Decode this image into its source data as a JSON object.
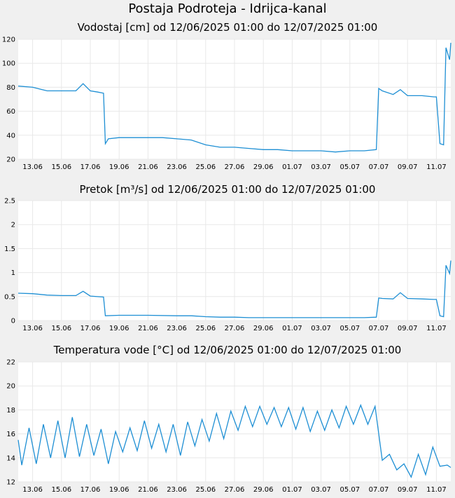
{
  "page_title": "Postaja Podroteja - Idrijca-kanal",
  "colors": {
    "series": "#1e8fd4",
    "background": "#f0f0f0",
    "plot": "#ffffff",
    "grid": "#e8e8e8"
  },
  "chart_data": [
    {
      "type": "line",
      "title": "Vodostaj [cm] od 12/06/2025 01:00 do 12/07/2025 01:00",
      "xlabel": "",
      "ylabel": "",
      "xlim": [
        "2025-06-12",
        "2025-07-12"
      ],
      "ylim": [
        20,
        120
      ],
      "yticks": [
        "20",
        "40",
        "60",
        "80",
        "100",
        "120"
      ],
      "xticks": [
        "13.06",
        "15.06",
        "17.06",
        "19.06",
        "21.06",
        "23.06",
        "25.06",
        "27.06",
        "29.06",
        "01.07",
        "03.07",
        "05.07",
        "07.07",
        "09.07",
        "11.07"
      ],
      "grid": true,
      "legend": "none",
      "x": [
        "2025-06-12",
        "2025-06-13",
        "2025-06-14",
        "2025-06-15",
        "2025-06-16",
        "2025-06-16 12:00",
        "2025-06-17",
        "2025-06-17 12:00",
        "2025-06-17 22:00",
        "2025-06-18 01:00",
        "2025-06-18 06:00",
        "2025-06-19",
        "2025-06-20",
        "2025-06-21",
        "2025-06-22",
        "2025-06-23",
        "2025-06-24",
        "2025-06-25",
        "2025-06-26",
        "2025-06-26 12:00",
        "2025-06-27",
        "2025-06-28",
        "2025-06-29",
        "2025-06-30",
        "2025-07-01",
        "2025-07-02",
        "2025-07-03",
        "2025-07-04",
        "2025-07-05",
        "2025-07-06",
        "2025-07-06 20:00",
        "2025-07-07",
        "2025-07-07 06:00",
        "2025-07-08",
        "2025-07-08 12:00",
        "2025-07-09",
        "2025-07-10",
        "2025-07-10 20:00",
        "2025-07-11",
        "2025-07-11 06:00",
        "2025-07-11 12:00",
        "2025-07-11 16:00",
        "2025-07-11 22:00",
        "2025-07-12"
      ],
      "values": [
        81,
        80,
        77,
        77,
        77,
        83,
        77,
        76,
        75,
        33,
        37,
        38,
        38,
        38,
        38,
        37,
        36,
        32,
        30,
        30,
        30,
        29,
        28,
        28,
        27,
        27,
        27,
        26,
        27,
        27,
        28,
        79,
        77,
        74,
        78,
        73,
        73,
        72,
        72,
        33,
        32,
        113,
        103,
        117
      ]
    },
    {
      "type": "line",
      "title": "Pretok [m³/s] od 12/06/2025 01:00 do 12/07/2025 01:00",
      "xlabel": "",
      "ylabel": "",
      "xlim": [
        "2025-06-12",
        "2025-07-12"
      ],
      "ylim": [
        0,
        2.5
      ],
      "yticks": [
        "0",
        "0.5",
        "1",
        "1.5",
        "2",
        "2.5"
      ],
      "xticks": [
        "13.06",
        "15.06",
        "17.06",
        "19.06",
        "21.06",
        "23.06",
        "25.06",
        "27.06",
        "29.06",
        "01.07",
        "03.07",
        "05.07",
        "07.07",
        "09.07",
        "11.07"
      ],
      "grid": true,
      "legend": "none",
      "x": [
        "2025-06-12",
        "2025-06-13",
        "2025-06-14",
        "2025-06-15",
        "2025-06-16",
        "2025-06-16 12:00",
        "2025-06-17",
        "2025-06-17 22:00",
        "2025-06-18 01:00",
        "2025-06-19",
        "2025-06-21",
        "2025-06-23",
        "2025-06-24",
        "2025-06-25",
        "2025-06-26",
        "2025-06-27",
        "2025-06-28",
        "2025-06-30",
        "2025-07-02",
        "2025-07-04",
        "2025-07-06",
        "2025-07-06 20:00",
        "2025-07-07",
        "2025-07-07 06:00",
        "2025-07-08",
        "2025-07-08 12:00",
        "2025-07-09",
        "2025-07-10",
        "2025-07-10 20:00",
        "2025-07-11",
        "2025-07-11 06:00",
        "2025-07-11 12:00",
        "2025-07-11 16:00",
        "2025-07-11 22:00",
        "2025-07-12"
      ],
      "values": [
        0.57,
        0.56,
        0.53,
        0.52,
        0.52,
        0.61,
        0.51,
        0.49,
        0.1,
        0.11,
        0.11,
        0.1,
        0.1,
        0.08,
        0.07,
        0.07,
        0.06,
        0.06,
        0.06,
        0.06,
        0.06,
        0.07,
        0.47,
        0.46,
        0.45,
        0.58,
        0.46,
        0.45,
        0.44,
        0.44,
        0.1,
        0.08,
        1.15,
        0.98,
        1.25
      ]
    },
    {
      "type": "line",
      "title": "Temperatura vode [°C] od 12/06/2025 01:00 do 12/07/2025 01:00",
      "xlabel": "",
      "ylabel": "",
      "xlim": [
        "2025-06-12",
        "2025-07-12"
      ],
      "ylim": [
        12,
        22
      ],
      "yticks": [
        "12",
        "14",
        "16",
        "18",
        "20",
        "22"
      ],
      "xticks": [
        "13.06",
        "15.06",
        "17.06",
        "19.06",
        "21.06",
        "23.06",
        "25.06",
        "27.06",
        "29.06",
        "01.07",
        "03.07",
        "05.07",
        "07.07",
        "09.07",
        "11.07"
      ],
      "grid": true,
      "legend": "none",
      "x": [
        "2025-06-12",
        "2025-06-12 06:00",
        "2025-06-12 18:00",
        "2025-06-13 06:00",
        "2025-06-13 18:00",
        "2025-06-14 06:00",
        "2025-06-14 18:00",
        "2025-06-15 06:00",
        "2025-06-15 18:00",
        "2025-06-16 06:00",
        "2025-06-16 18:00",
        "2025-06-17 06:00",
        "2025-06-17 18:00",
        "2025-06-18 06:00",
        "2025-06-18 18:00",
        "2025-06-19 06:00",
        "2025-06-19 18:00",
        "2025-06-20 06:00",
        "2025-06-20 18:00",
        "2025-06-21 06:00",
        "2025-06-21 18:00",
        "2025-06-22 06:00",
        "2025-06-22 18:00",
        "2025-06-23 06:00",
        "2025-06-23 18:00",
        "2025-06-24 06:00",
        "2025-06-24 18:00",
        "2025-06-25 06:00",
        "2025-06-25 18:00",
        "2025-06-26 06:00",
        "2025-06-26 18:00",
        "2025-06-27 06:00",
        "2025-06-27 18:00",
        "2025-06-28 06:00",
        "2025-06-28 18:00",
        "2025-06-29 06:00",
        "2025-06-29 18:00",
        "2025-06-30 06:00",
        "2025-06-30 18:00",
        "2025-07-01 06:00",
        "2025-07-01 18:00",
        "2025-07-02 06:00",
        "2025-07-02 18:00",
        "2025-07-03 06:00",
        "2025-07-03 18:00",
        "2025-07-04 06:00",
        "2025-07-04 18:00",
        "2025-07-05 06:00",
        "2025-07-05 18:00",
        "2025-07-06 06:00",
        "2025-07-06 18:00",
        "2025-07-07 06:00",
        "2025-07-07 18:00",
        "2025-07-08 06:00",
        "2025-07-08 18:00",
        "2025-07-09 06:00",
        "2025-07-09 18:00",
        "2025-07-10 06:00",
        "2025-07-10 18:00",
        "2025-07-11 06:00",
        "2025-07-11 18:00",
        "2025-07-12"
      ],
      "values": [
        15.5,
        13.4,
        16.5,
        13.5,
        16.8,
        14.0,
        17.1,
        14.0,
        17.4,
        14.1,
        16.8,
        14.2,
        16.4,
        13.5,
        16.2,
        14.5,
        16.5,
        14.6,
        17.1,
        14.8,
        16.8,
        14.5,
        16.8,
        14.2,
        17.0,
        15.0,
        17.2,
        15.4,
        17.7,
        15.6,
        17.9,
        16.3,
        18.3,
        16.6,
        18.3,
        16.8,
        18.2,
        16.6,
        18.2,
        16.4,
        18.2,
        16.2,
        17.9,
        16.3,
        18.0,
        16.5,
        18.3,
        16.8,
        18.4,
        16.8,
        18.3,
        13.8,
        14.3,
        13.0,
        13.5,
        12.4,
        14.3,
        12.6,
        14.9,
        13.3,
        13.4,
        13.2
      ]
    }
  ]
}
